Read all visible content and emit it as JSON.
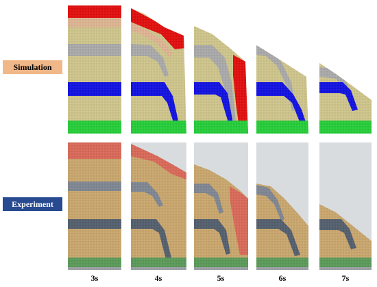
{
  "row_labels": {
    "simulation": "Simulation",
    "experiment": "Experiment"
  },
  "time_labels": [
    "3s",
    "4s",
    "5s",
    "6s",
    "7s"
  ],
  "colors": {
    "sand": "#cdc48c",
    "sand_dark": "#b8ad74",
    "red_layer": "#e01010",
    "pink_layer": "#e8a898",
    "gray_layer": "#a9a9a9",
    "blue_layer": "#1414e0",
    "green_layer": "#28cc3c",
    "exp_sand": "#c8a66e",
    "exp_red": "#d86a5a",
    "exp_gray": "#7f8792",
    "exp_darkgray": "#55606e",
    "exp_green": "#5c9a5a",
    "exp_wall": "#d8dcdf",
    "simulation_label_bg": "#f0b888",
    "experiment_label_bg": "#274a90"
  }
}
